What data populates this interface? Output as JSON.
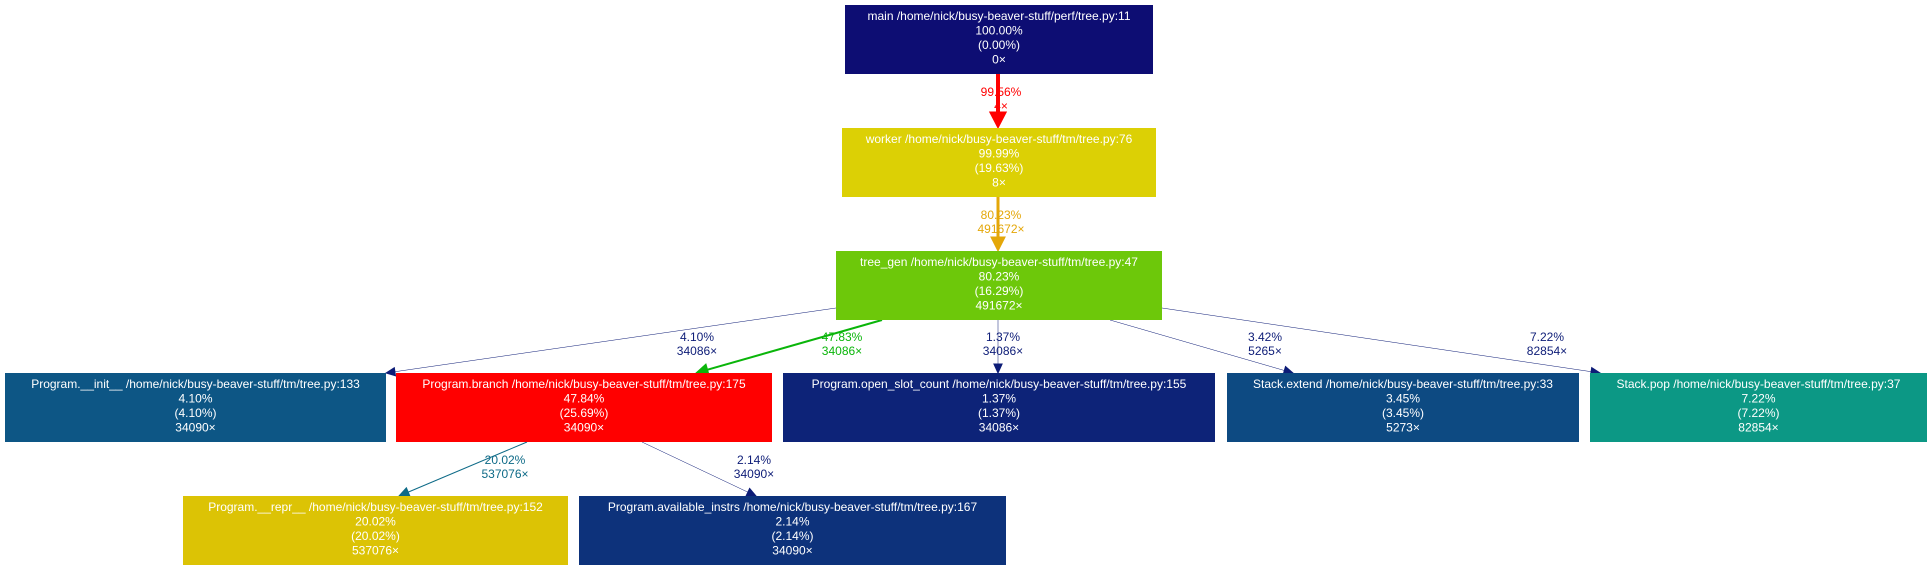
{
  "nodes": [
    {
      "id": "main",
      "lines": [
        "main /home/nick/busy-beaver-stuff/perf/tree.py:11",
        "100.00%",
        "(0.00%)",
        "0×"
      ],
      "color": "#0d0d73"
    },
    {
      "id": "worker",
      "lines": [
        "worker /home/nick/busy-beaver-stuff/tm/tree.py:76",
        "99.99%",
        "(19.63%)",
        "8×"
      ],
      "color": "#dcd005"
    },
    {
      "id": "tree_gen",
      "lines": [
        "tree_gen /home/nick/busy-beaver-stuff/tm/tree.py:47",
        "80.23%",
        "(16.29%)",
        "491672×"
      ],
      "color": "#6dc80a"
    },
    {
      "id": "init",
      "lines": [
        "Program.__init__ /home/nick/busy-beaver-stuff/tm/tree.py:133",
        "4.10%",
        "(4.10%)",
        "34090×"
      ],
      "color": "#0d5685"
    },
    {
      "id": "branch",
      "lines": [
        "Program.branch /home/nick/busy-beaver-stuff/tm/tree.py:175",
        "47.84%",
        "(25.69%)",
        "34090×"
      ],
      "color": "#ff0000"
    },
    {
      "id": "open_slot",
      "lines": [
        "Program.open_slot_count /home/nick/busy-beaver-stuff/tm/tree.py:155",
        "1.37%",
        "(1.37%)",
        "34086×"
      ],
      "color": "#0d2378"
    },
    {
      "id": "extend",
      "lines": [
        "Stack.extend /home/nick/busy-beaver-stuff/tm/tree.py:33",
        "3.45%",
        "(3.45%)",
        "5273×"
      ],
      "color": "#0d4a82"
    },
    {
      "id": "pop",
      "lines": [
        "Stack.pop /home/nick/busy-beaver-stuff/tm/tree.py:37",
        "7.22%",
        "(7.22%)",
        "82854×"
      ],
      "color": "#0c9885"
    },
    {
      "id": "repr",
      "lines": [
        "Program.__repr__ /home/nick/busy-beaver-stuff/tm/tree.py:152",
        "20.02%",
        "(20.02%)",
        "537076×"
      ],
      "color": "#dcc305"
    },
    {
      "id": "instrs",
      "lines": [
        "Program.available_instrs /home/nick/busy-beaver-stuff/tm/tree.py:167",
        "2.14%",
        "(2.14%)",
        "34090×"
      ],
      "color": "#0d327b"
    }
  ],
  "edges": [
    {
      "id": "main-worker",
      "from": "main",
      "to": "worker",
      "labels": [
        "99.56%",
        "4×"
      ],
      "color": "#ff0000",
      "weight": 4
    },
    {
      "id": "worker-tree_gen",
      "from": "worker",
      "to": "tree_gen",
      "labels": [
        "80.23%",
        "491672×"
      ],
      "color": "#e4a709",
      "weight": 3
    },
    {
      "id": "tree_gen-init",
      "from": "tree_gen",
      "to": "init",
      "labels": [
        "4.10%",
        "34086×"
      ],
      "color": "#0d1c77",
      "weight": 0.5
    },
    {
      "id": "tree_gen-branch",
      "from": "tree_gen",
      "to": "branch",
      "labels": [
        "47.83%",
        "34086×"
      ],
      "color": "#0ab50a",
      "weight": 2
    },
    {
      "id": "tree_gen-open_slot",
      "from": "tree_gen",
      "to": "open_slot",
      "labels": [
        "1.37%",
        "34086×"
      ],
      "color": "#0d1c77",
      "weight": 0.5
    },
    {
      "id": "tree_gen-extend",
      "from": "tree_gen",
      "to": "extend",
      "labels": [
        "3.42%",
        "5265×"
      ],
      "color": "#0d1c77",
      "weight": 0.5
    },
    {
      "id": "tree_gen-pop",
      "from": "tree_gen",
      "to": "pop",
      "labels": [
        "7.22%",
        "82854×"
      ],
      "color": "#0d1c77",
      "weight": 0.5
    },
    {
      "id": "branch-repr",
      "from": "branch",
      "to": "repr",
      "labels": [
        "20.02%",
        "537076×"
      ],
      "color": "#0d6a87",
      "weight": 1
    },
    {
      "id": "branch-instrs",
      "from": "branch",
      "to": "instrs",
      "labels": [
        "2.14%",
        "34090×"
      ],
      "color": "#0d1c77",
      "weight": 0.5
    }
  ]
}
